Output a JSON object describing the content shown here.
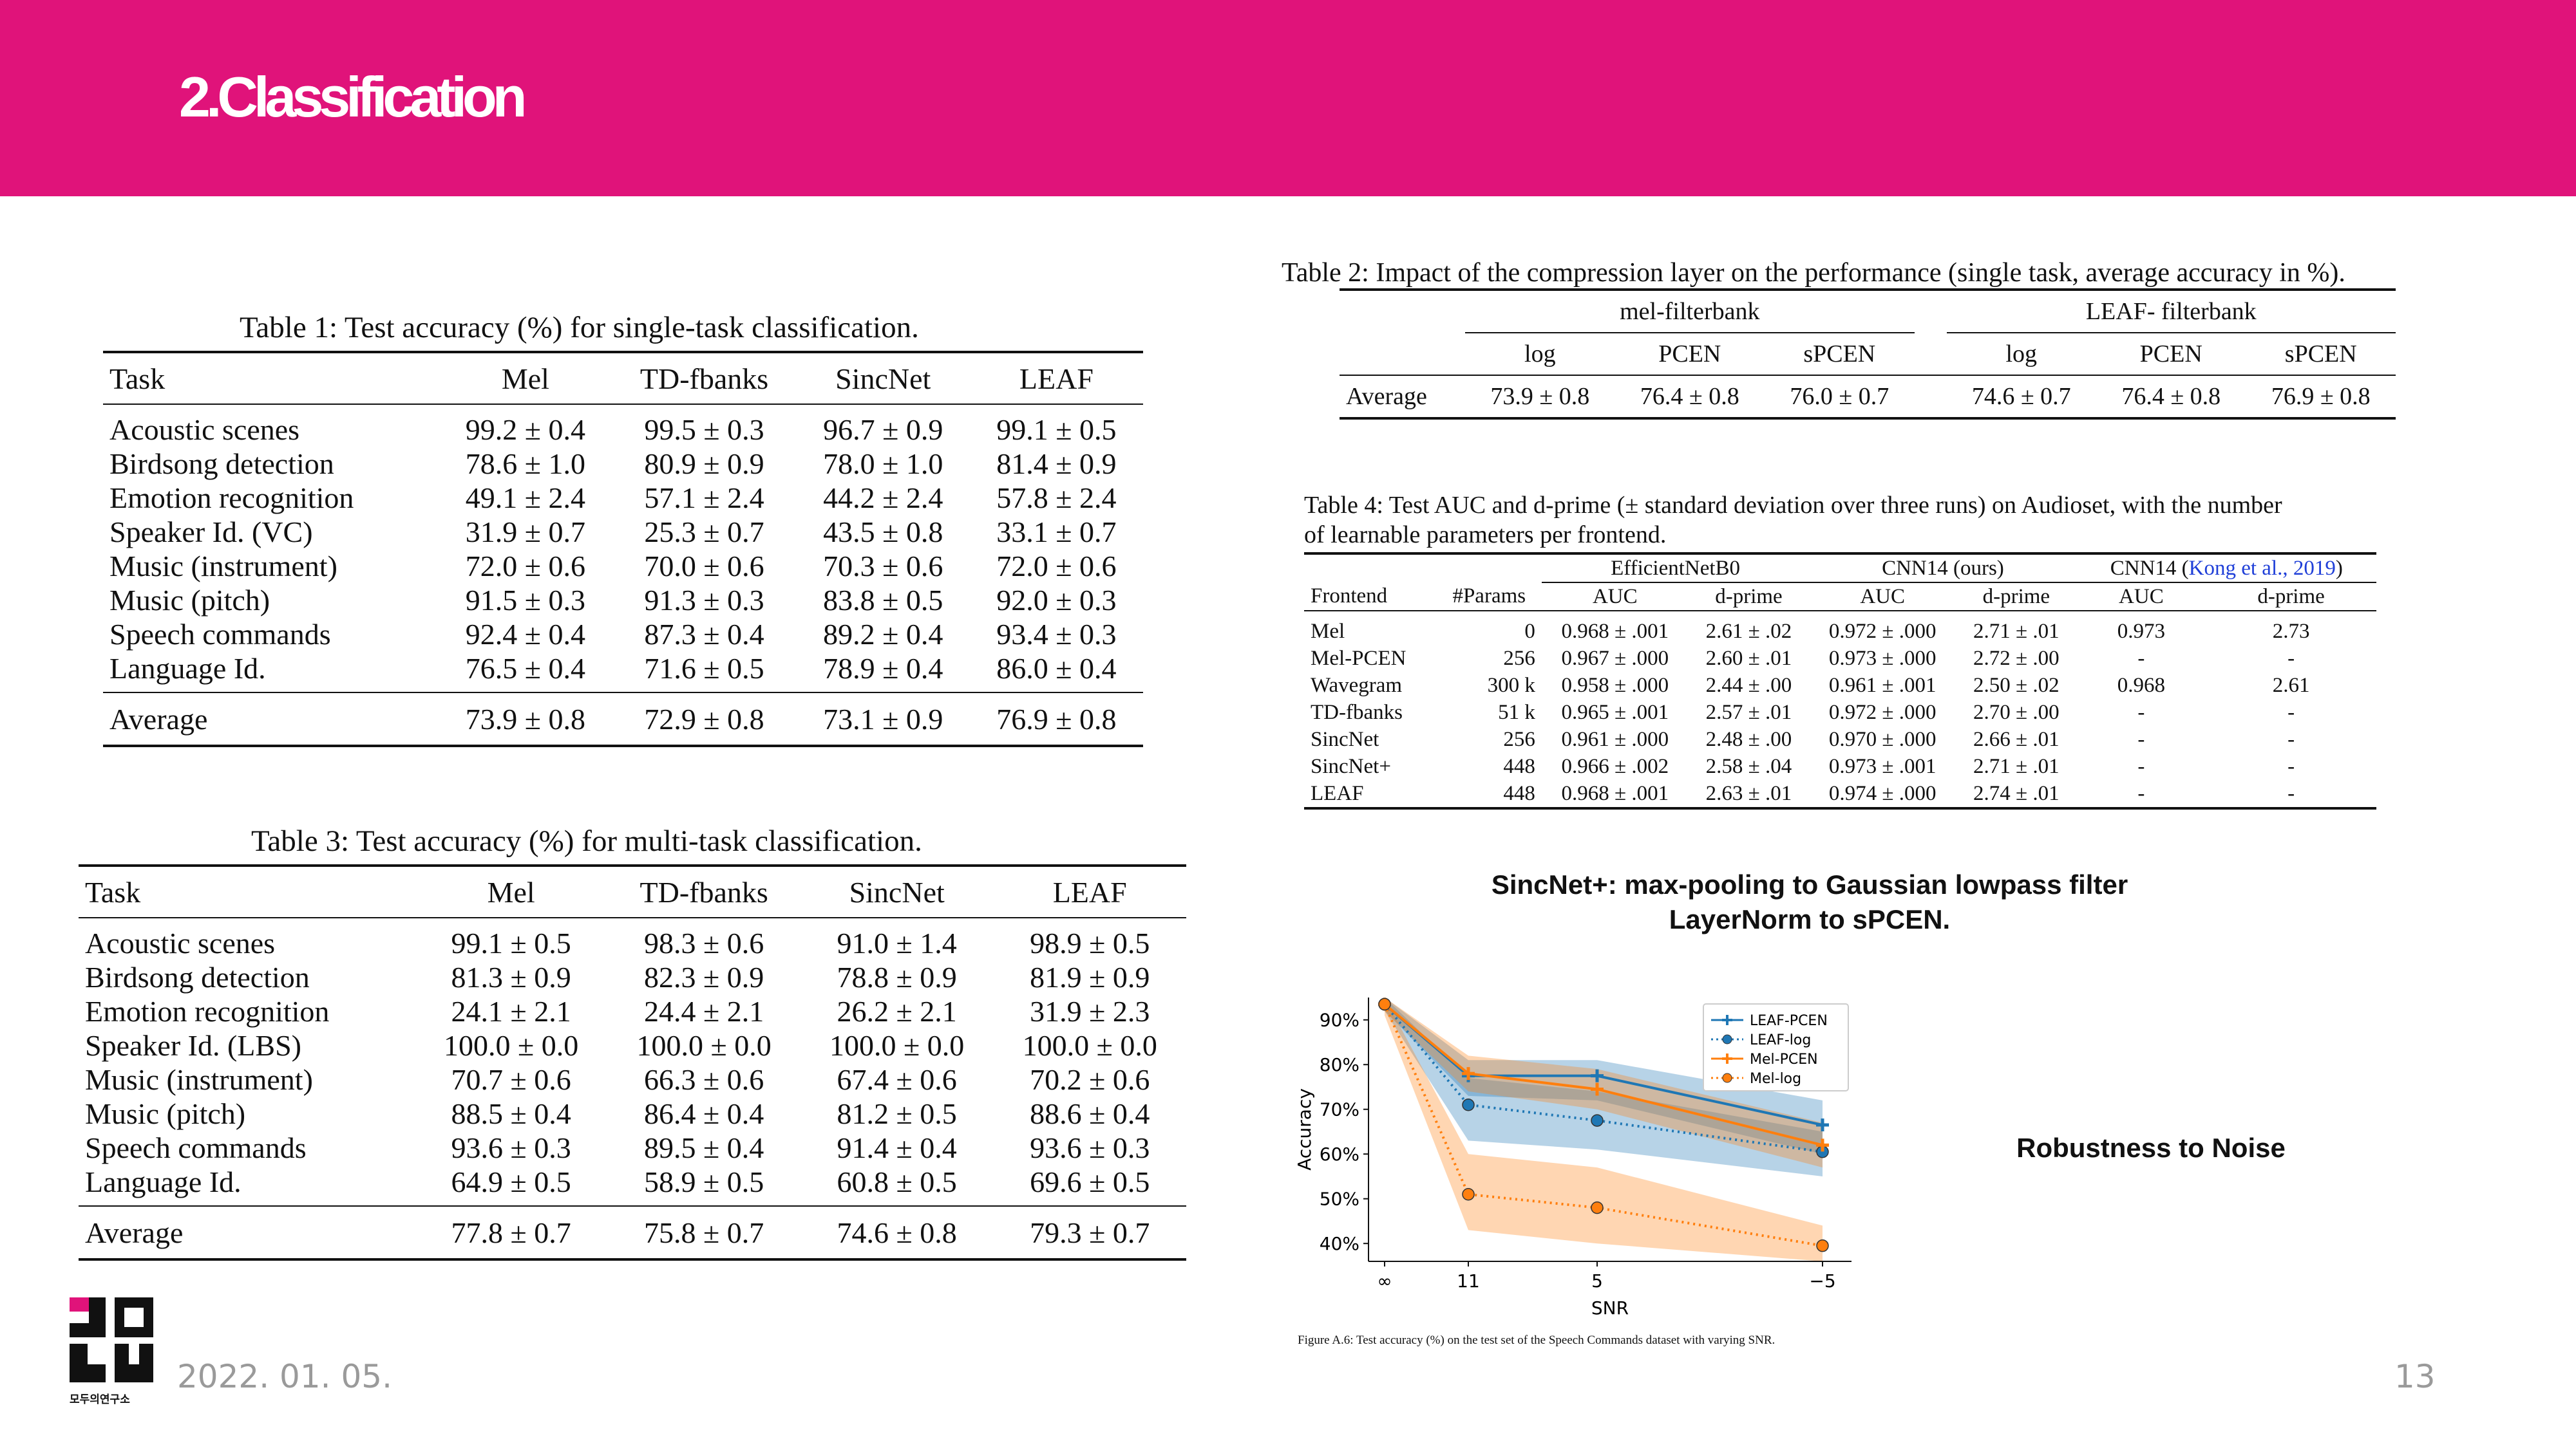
{
  "colors": {
    "accent": "#e0137a",
    "footer_text": "#9a9a9a",
    "leaf_pcen": "#1f77b4",
    "mel": "#ff7f0e"
  },
  "header": {
    "title": "2.Classification"
  },
  "table1": {
    "caption": "Table 1: Test accuracy (%) for single-task classification.",
    "headers": [
      "Task",
      "Mel",
      "TD-fbanks",
      "SincNet",
      "LEAF"
    ],
    "rows": [
      [
        "Acoustic scenes",
        "99.2 ± 0.4",
        "99.5 ± 0.3",
        "96.7 ± 0.9",
        "99.1 ± 0.5"
      ],
      [
        "Birdsong detection",
        "78.6 ± 1.0",
        "80.9 ± 0.9",
        "78.0 ± 1.0",
        "81.4 ± 0.9"
      ],
      [
        "Emotion recognition",
        "49.1 ± 2.4",
        "57.1 ± 2.4",
        "44.2 ± 2.4",
        "57.8 ± 2.4"
      ],
      [
        "Speaker Id. (VC)",
        "31.9 ± 0.7",
        "25.3 ± 0.7",
        "43.5 ± 0.8",
        "33.1 ± 0.7"
      ],
      [
        "Music (instrument)",
        "72.0 ± 0.6",
        "70.0 ± 0.6",
        "70.3 ± 0.6",
        "72.0 ± 0.6"
      ],
      [
        "Music (pitch)",
        "91.5 ± 0.3",
        "91.3 ± 0.3",
        "83.8 ± 0.5",
        "92.0 ± 0.3"
      ],
      [
        "Speech commands",
        "92.4 ± 0.4",
        "87.3 ± 0.4",
        "89.2 ± 0.4",
        "93.4 ± 0.3"
      ],
      [
        "Language Id.",
        "76.5 ± 0.4",
        "71.6 ± 0.5",
        "78.9 ± 0.4",
        "86.0 ± 0.4"
      ]
    ],
    "bold": [
      [
        0,
        2
      ],
      [
        1,
        4
      ],
      [
        2,
        4
      ],
      [
        3,
        3
      ],
      [
        4,
        1
      ],
      [
        4,
        4
      ],
      [
        5,
        4
      ],
      [
        6,
        4
      ],
      [
        7,
        4
      ]
    ],
    "average": [
      "Average",
      "73.9 ± 0.8",
      "72.9 ± 0.8",
      "73.1 ± 0.9",
      "76.9 ± 0.8"
    ],
    "average_bold": [
      4
    ]
  },
  "table3": {
    "caption": "Table 3: Test accuracy (%) for multi-task classification.",
    "headers": [
      "Task",
      "Mel",
      "TD-fbanks",
      "SincNet",
      "LEAF"
    ],
    "rows": [
      [
        "Acoustic scenes",
        "99.1 ± 0.5",
        "98.3 ± 0.6",
        "91.0 ± 1.4",
        "98.9 ± 0.5"
      ],
      [
        "Birdsong detection",
        "81.3 ± 0.9",
        "82.3 ± 0.9",
        "78.8 ± 0.9",
        "81.9 ± 0.9"
      ],
      [
        "Emotion recognition",
        "24.1 ± 2.1",
        "24.4 ± 2.1",
        "26.2 ± 2.1",
        "31.9 ± 2.3"
      ],
      [
        "Speaker Id. (LBS)",
        "100.0 ± 0.0",
        "100.0 ± 0.0",
        "100.0 ± 0.0",
        "100.0 ± 0.0"
      ],
      [
        "Music (instrument)",
        "70.7 ± 0.6",
        "66.3 ± 0.6",
        "67.4 ± 0.6",
        "70.2 ± 0.6"
      ],
      [
        "Music (pitch)",
        "88.5 ± 0.4",
        "86.4 ± 0.4",
        "81.2 ± 0.5",
        "88.6 ± 0.4"
      ],
      [
        "Speech commands",
        "93.6 ± 0.3",
        "89.5 ± 0.4",
        "91.4 ± 0.4",
        "93.6 ± 0.3"
      ],
      [
        "Language Id.",
        "64.9 ± 0.5",
        "58.9 ± 0.5",
        "60.8 ± 0.5",
        "69.6 ± 0.5"
      ]
    ],
    "bold": [
      [
        0,
        1
      ],
      [
        1,
        2
      ],
      [
        2,
        4
      ],
      [
        3,
        1
      ],
      [
        3,
        2
      ],
      [
        3,
        3
      ],
      [
        3,
        4
      ],
      [
        4,
        1
      ],
      [
        5,
        4
      ],
      [
        6,
        1
      ],
      [
        6,
        4
      ],
      [
        7,
        4
      ]
    ],
    "average": [
      "Average",
      "77.8 ± 0.7",
      "75.8 ± 0.7",
      "74.6 ± 0.8",
      "79.3 ± 0.7"
    ],
    "average_bold": [
      4
    ]
  },
  "table2": {
    "caption": "Table 2: Impact of the compression layer on the performance (single task, average accuracy in %).",
    "groups": [
      "mel-filterbank",
      "LEAF- filterbank"
    ],
    "subheaders": [
      "log",
      "PCEN",
      "sPCEN",
      "log",
      "PCEN",
      "sPCEN"
    ],
    "row_label": "Average",
    "values": [
      "73.9 ± 0.8",
      "76.4 ± 0.8",
      "76.0 ± 0.7",
      "74.6 ± 0.7",
      "76.4 ± 0.8",
      "76.9 ± 0.8"
    ],
    "bold_index": 5
  },
  "table4": {
    "caption_line1": "Table 4: Test AUC and d-prime (± standard deviation over three runs) on Audioset, with the number",
    "caption_line2": "of learnable parameters per frontend.",
    "groups": [
      "EfficientNetB0",
      "CNN14 (ours)",
      "CNN14 ("
    ],
    "group3_link": "Kong et al., 2019",
    "group3_close": ")",
    "headers": [
      "Frontend",
      "#Params",
      "AUC",
      "d-prime",
      "AUC",
      "d-prime",
      "AUC",
      "d-prime"
    ],
    "rows": [
      [
        "Mel",
        "0",
        "0.968 ± .001",
        "2.61 ± .02",
        "0.972 ± .000",
        "2.71 ± .01",
        "0.973",
        "2.73"
      ],
      [
        "Mel-PCEN",
        "256",
        "0.967 ± .000",
        "2.60 ± .01",
        "0.973 ± .000",
        "2.72 ± .00",
        "-",
        "-"
      ],
      [
        "Wavegram",
        "300 k",
        "0.958 ± .000",
        "2.44 ± .00",
        "0.961 ± .001",
        "2.50 ± .02",
        "0.968",
        "2.61"
      ],
      [
        "TD-fbanks",
        "51 k",
        "0.965 ± .001",
        "2.57 ± .01",
        "0.972 ± .000",
        "2.70 ± .00",
        "-",
        "-"
      ],
      [
        "SincNet",
        "256",
        "0.961 ± .000",
        "2.48 ± .00",
        "0.970 ± .000",
        "2.66 ± .01",
        "-",
        "-"
      ],
      [
        "SincNet+",
        "448",
        "0.966 ± .002",
        "2.58 ± .04",
        "0.973 ± .001",
        "2.71 ± .01",
        "-",
        "-"
      ],
      [
        "LEAF",
        "448",
        "0.968 ± .001",
        "2.63 ± .01",
        "0.974 ± .000",
        "2.74 ± .01",
        "-",
        "-"
      ]
    ],
    "bold": [
      [
        6,
        4
      ],
      [
        6,
        5
      ]
    ]
  },
  "notes": {
    "sincnet_line1": "SincNet+: max-pooling to Gaussian lowpass filter",
    "sincnet_line2": "LayerNorm to sPCEN.",
    "robustness": "Robustness to Noise"
  },
  "chart_data": {
    "type": "line",
    "x": [
      "∞",
      "11",
      "5",
      "−5"
    ],
    "xlabel": "SNR",
    "ylabel": "Accuracy",
    "yticks": [
      "40%",
      "50%",
      "60%",
      "70%",
      "80%",
      "90%"
    ],
    "ylim": [
      36,
      95
    ],
    "legend_position": "top-right",
    "series": [
      {
        "name": "LEAF-PCEN",
        "values": [
          93.5,
          77.5,
          77.5,
          66.5
        ],
        "lower": [
          92,
          73,
          72,
          60
        ],
        "upper": [
          95,
          81,
          81,
          72
        ],
        "style": "solid",
        "marker": "plus",
        "color": "#1f77b4"
      },
      {
        "name": "LEAF-log",
        "values": [
          93.5,
          71,
          67.5,
          60.5
        ],
        "lower": [
          92,
          63,
          61,
          55
        ],
        "upper": [
          95,
          77,
          74,
          65
        ],
        "style": "dotted",
        "marker": "circle",
        "color": "#1f77b4"
      },
      {
        "name": "Mel-PCEN",
        "values": [
          93.5,
          78,
          74.5,
          62
        ],
        "lower": [
          92,
          74,
          70,
          57
        ],
        "upper": [
          95,
          82,
          79,
          67
        ],
        "style": "solid",
        "marker": "plus",
        "color": "#ff7f0e"
      },
      {
        "name": "Mel-log",
        "values": [
          93.5,
          51,
          48,
          39.5
        ],
        "lower": [
          91,
          43,
          40,
          36
        ],
        "upper": [
          95,
          60,
          57,
          44
        ],
        "style": "dotted",
        "marker": "circle",
        "color": "#ff7f0e"
      }
    ],
    "caption": "Figure A.6: Test accuracy (%) on the test set of the Speech Commands dataset with varying SNR."
  },
  "footer": {
    "date": "2022. 01. 05.",
    "page": "13",
    "logo_text": "모두의연구소"
  }
}
